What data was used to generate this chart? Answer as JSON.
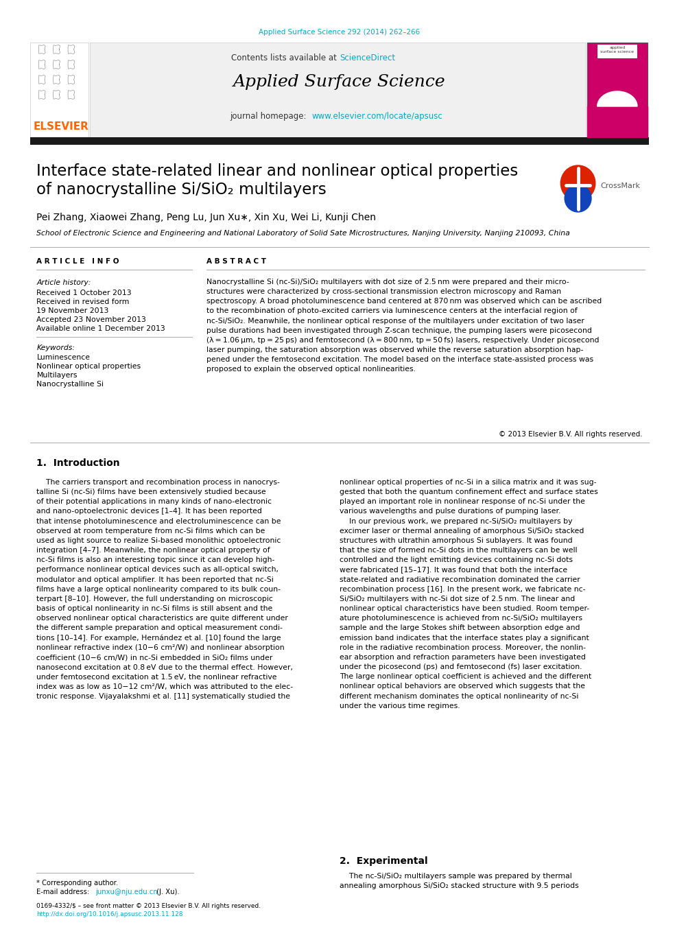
{
  "page_width": 10.2,
  "page_height": 13.51,
  "dpi": 100,
  "bg_color": "#ffffff",
  "top_citation": "Applied Surface Science 292 (2014) 262–266",
  "citation_color": "#00aacc",
  "journal_name": "Applied Surface Science",
  "sciencedirect_color": "#00aacc",
  "homepage_url": "www.elsevier.com/locate/apsusc",
  "homepage_color": "#00aacc",
  "title_line1": "Interface state-related linear and nonlinear optical properties",
  "title_line2": "of nanocrystalline Si/SiO₂ multilayers",
  "authors": "Pei Zhang, Xiaowei Zhang, Peng Lu, Jun Xu∗, Xin Xu, Wei Li, Kunji Chen",
  "affiliation": "School of Electronic Science and Engineering and National Laboratory of Solid Sate Microstructures, Nanjing University, Nanjing 210093, China",
  "article_info_label": "A R T I C L E   I N F O",
  "abstract_label": "A B S T R A C T",
  "article_history_label": "Article history:",
  "history_items": [
    "Received 1 October 2013",
    "Received in revised form",
    "19 November 2013",
    "Accepted 23 November 2013",
    "Available online 1 December 2013"
  ],
  "keywords_label": "Keywords:",
  "keywords": [
    "Luminescence",
    "Nonlinear optical properties",
    "Multilayers",
    "Nanocrystalline Si"
  ],
  "abstract_text": "Nanocrystalline Si (nc-Si)/SiO₂ multilayers with dot size of 2.5 nm were prepared and their micro-\nstructures were characterized by cross-sectional transmission electron microscopy and Raman\nspectroscopy. A broad photoluminescence band centered at 870 nm was observed which can be ascribed\nto the recombination of photo-excited carriers via luminescence centers at the interfacial region of\nnc-Si/SiO₂. Meanwhile, the nonlinear optical response of the multilayers under excitation of two laser\npulse durations had been investigated through Z-scan technique, the pumping lasers were picosecond\n(λ = 1.06 μm, tp = 25 ps) and femtosecond (λ = 800 nm, tp = 50 fs) lasers, respectively. Under picosecond\nlaser pumping, the saturation absorption was observed while the reverse saturation absorption hap-\npened under the femtosecond excitation. The model based on the interface state-assisted process was\nproposed to explain the observed optical nonlinearities.",
  "copyright_text": "© 2013 Elsevier B.V. All rights reserved.",
  "intro_title": "1.  Introduction",
  "intro_col1": "    The carriers transport and recombination process in nanocrys-\ntalline Si (nc-Si) films have been extensively studied because\nof their potential applications in many kinds of nano-electronic\nand nano-optoelectronic devices [1–4]. It has been reported\nthat intense photoluminescence and electroluminescence can be\nobserved at room temperature from nc-Si films which can be\nused as light source to realize Si-based monolithic optoelectronic\nintegration [4–7]. Meanwhile, the nonlinear optical property of\nnc-Si films is also an interesting topic since it can develop high-\nperformance nonlinear optical devices such as all-optical switch,\nmodulator and optical amplifier. It has been reported that nc-Si\nfilms have a large optical nonlinearity compared to its bulk coun-\nterpart [8–10]. However, the full understanding on microscopic\nbasis of optical nonlinearity in nc-Si films is still absent and the\nobserved nonlinear optical characteristics are quite different under\nthe different sample preparation and optical measurement condi-\ntions [10–14]. For example, Hernández et al. [10] found the large\nnonlinear refractive index (10−6 cm²/W) and nonlinear absorption\ncoefficient (10−6 cm/W) in nc-Si embedded in SiO₂ films under\nnanosecond excitation at 0.8 eV due to the thermal effect. However,\nunder femtosecond excitation at 1.5 eV, the nonlinear refractive\nindex was as low as 10−12 cm²/W, which was attributed to the elec-\ntronic response. Vijayalakshmi et al. [11] systematically studied the",
  "intro_col2": "nonlinear optical properties of nc-Si in a silica matrix and it was sug-\ngested that both the quantum confinement effect and surface states\nplayed an important role in nonlinear response of nc-Si under the\nvarious wavelengths and pulse durations of pumping laser.\n    In our previous work, we prepared nc-Si/SiO₂ multilayers by\nexcimer laser or thermal annealing of amorphous Si/SiO₂ stacked\nstructures with ultrathin amorphous Si sublayers. It was found\nthat the size of formed nc-Si dots in the multilayers can be well\ncontrolled and the light emitting devices containing nc-Si dots\nwere fabricated [15–17]. It was found that both the interface\nstate-related and radiative recombination dominated the carrier\nrecombination process [16]. In the present work, we fabricate nc-\nSi/SiO₂ multilayers with nc-Si dot size of 2.5 nm. The linear and\nnonlinear optical characteristics have been studied. Room temper-\nature photoluminescence is achieved from nc-Si/SiO₂ multilayers\nsample and the large Stokes shift between absorption edge and\nemission band indicates that the interface states play a significant\nrole in the radiative recombination process. Moreover, the nonlin-\near absorption and refraction parameters have been investigated\nunder the picosecond (ps) and femtosecond (fs) laser excitation.\nThe large nonlinear optical coefficient is achieved and the different\nnonlinear optical behaviors are observed which suggests that the\ndifferent mechanism dominates the optical nonlinearity of nc-Si\nunder the various time regimes.",
  "section2_title": "2.  Experimental",
  "section2_text": "    The nc-Si/SiO₂ multilayers sample was prepared by thermal\nannealing amorphous Si/SiO₂ stacked structure with 9.5 periods",
  "footnote_star": "* Corresponding author.",
  "footnote_email_pre": "E-mail address: ",
  "footnote_email_link": "junxu@nju.edu.cn",
  "footnote_email_post": " (J. Xu).",
  "link_color": "#00aacc",
  "issn_text": "0169-4332/$ – see front matter © 2013 Elsevier B.V. All rights reserved.",
  "doi_text": "http://dx.doi.org/10.1016/j.apsusc.2013.11.128",
  "doi_color": "#00aacc",
  "elsevier_color": "#ff6600"
}
